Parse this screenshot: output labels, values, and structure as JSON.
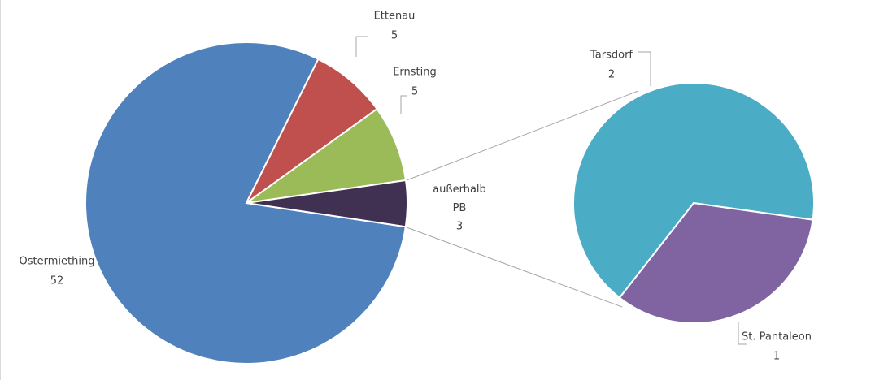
{
  "chart_data": {
    "type": "pie",
    "categories": [
      "Ostermiething",
      "Ettenau",
      "Ernsting",
      "außerhalb PB"
    ],
    "values": [
      52,
      5,
      5,
      3
    ],
    "colors": [
      "#4f81bd",
      "#c0504d",
      "#9bbb59",
      "#403152"
    ],
    "secondary": {
      "categories": [
        "St. Pantaleon",
        "Tarsdorf"
      ],
      "values": [
        1,
        2
      ],
      "colors": [
        "#8064a2",
        "#4bacc6"
      ]
    }
  }
}
